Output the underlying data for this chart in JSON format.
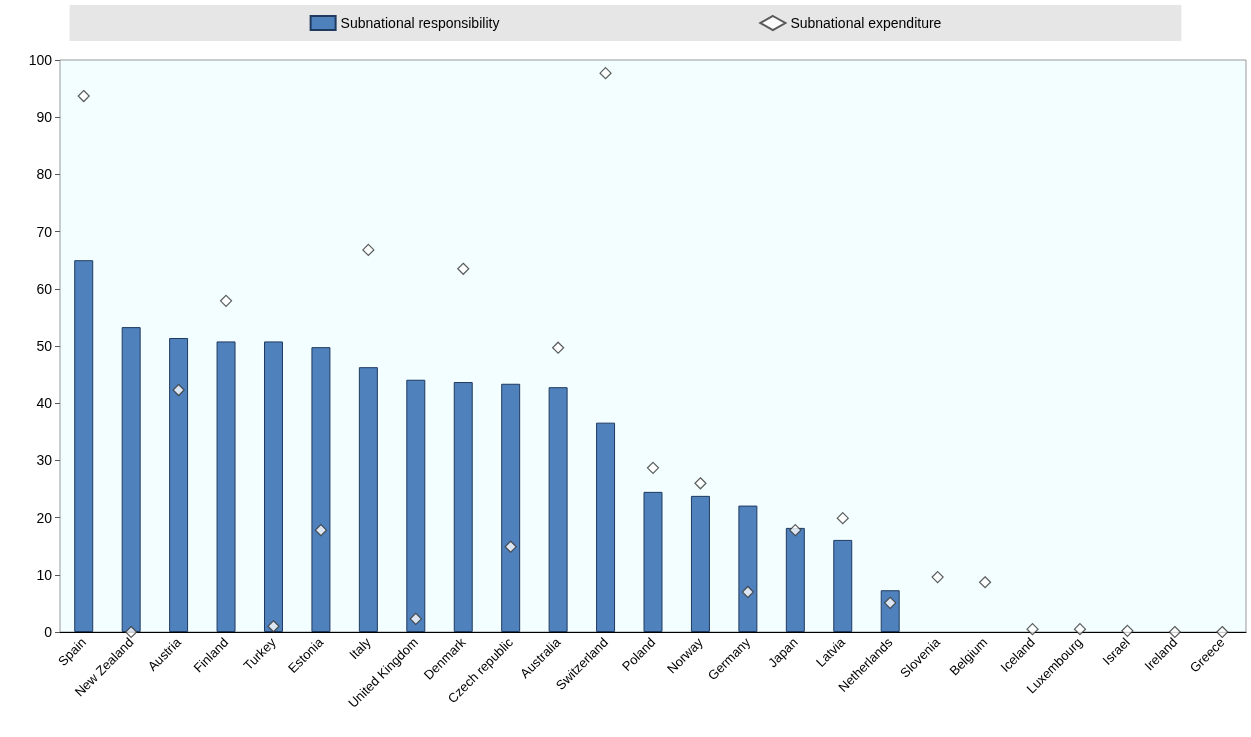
{
  "chart_data": {
    "type": "bar",
    "categories": [
      "Spain",
      "New Zealand",
      "Austria",
      "Finland",
      "Turkey",
      "Estonia",
      "Italy",
      "United Kingdom",
      "Denmark",
      "Czech republic",
      "Australia",
      "Switzerland",
      "Poland",
      "Norway",
      "Germany",
      "Japan",
      "Latvia",
      "Netherlands",
      "Slovenia",
      "Belgium",
      "Iceland",
      "Luxembourg",
      "Israel",
      "Ireland",
      "Greece"
    ],
    "series": [
      {
        "name": "Subnational responsibility",
        "color": "#4f81bd",
        "values": [
          65,
          53.3,
          51.4,
          50.8,
          50.8,
          49.8,
          46.3,
          44.1,
          43.7,
          43.4,
          42.8,
          36.6,
          24.5,
          23.8,
          22.1,
          18.2,
          16.1,
          7.3,
          null,
          null,
          null,
          null,
          null,
          null,
          null
        ]
      },
      {
        "name": "Subnational expenditure",
        "type": "scatter",
        "color": "#ffffff",
        "values": [
          93.7,
          0,
          42.3,
          57.9,
          1,
          17.8,
          66.8,
          2.3,
          63.5,
          14.9,
          49.7,
          97.7,
          28.7,
          26,
          7,
          17.8,
          19.9,
          5.1,
          9.6,
          8.7,
          0.5,
          0.5,
          0.2,
          0,
          0
        ]
      }
    ],
    "ylim": [
      0,
      100
    ],
    "yticks": [
      0,
      10,
      20,
      30,
      40,
      50,
      60,
      70,
      80,
      90,
      100
    ],
    "grid": false,
    "legend": "top",
    "marker": "diamond"
  }
}
